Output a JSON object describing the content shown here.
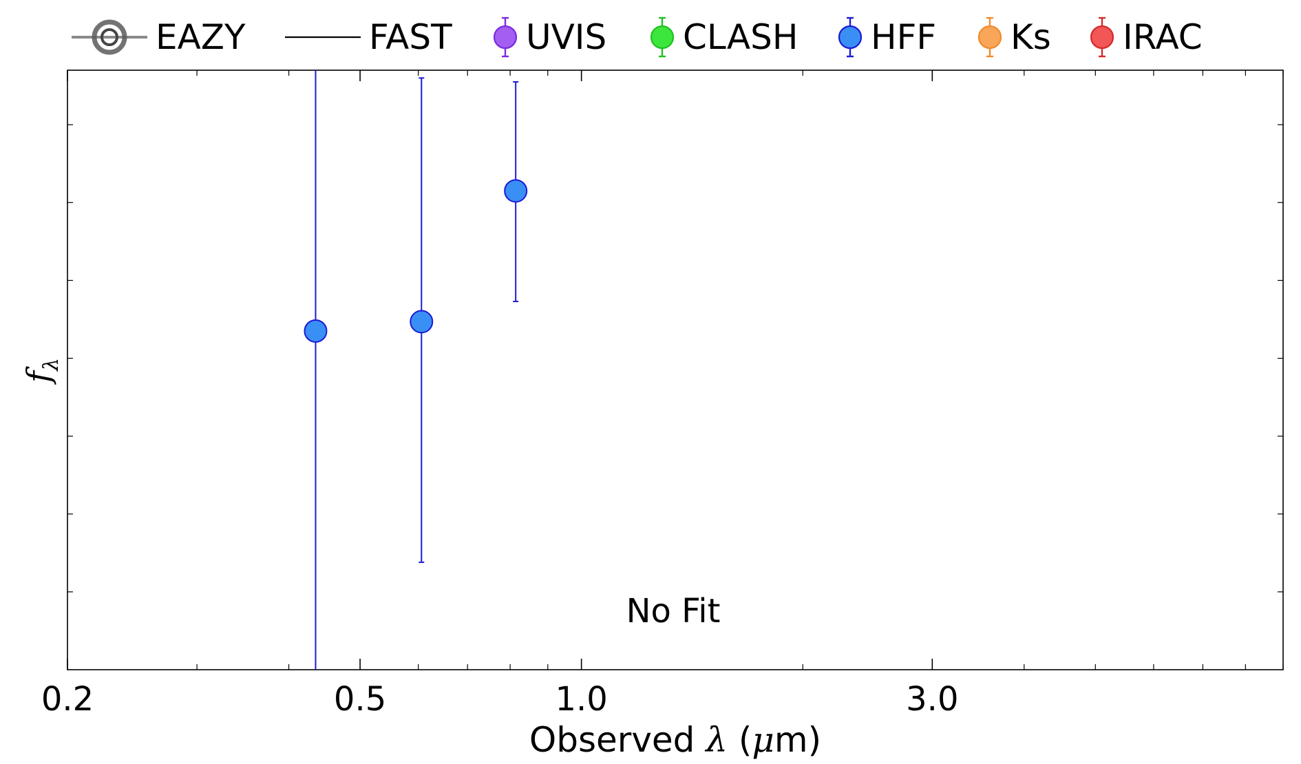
{
  "chart_data": {
    "type": "scatter",
    "x_scale": "log",
    "xlim": [
      0.2,
      9.0
    ],
    "ylim": [
      0,
      7.7
    ],
    "xlabel_main": "Observed ",
    "xlabel_lambda": "λ",
    "xlabel_unit_open": " (",
    "xlabel_mu": "μ",
    "xlabel_unit_close": "m)",
    "ylabel_f": "f",
    "ylabel_sub": "λ",
    "x_ticks": [
      {
        "value": 0.2,
        "label": "0.2"
      },
      {
        "value": 0.5,
        "label": "0.5"
      },
      {
        "value": 1.0,
        "label": "1.0"
      },
      {
        "value": 3.0,
        "label": "3.0"
      }
    ],
    "annotation": "No Fit",
    "legend": [
      {
        "label": "EAZY",
        "marker": "eazy",
        "color": "#777777"
      },
      {
        "label": "FAST",
        "marker": "line",
        "color": "#000000"
      },
      {
        "label": "UVIS",
        "marker": "errpoint",
        "color": "#a35ef2",
        "edge": "#7b2be0"
      },
      {
        "label": "CLASH",
        "marker": "errpoint",
        "color": "#3de63d",
        "edge": "#20c020"
      },
      {
        "label": "HFF",
        "marker": "errpoint",
        "color": "#3a8ff5",
        "edge": "#1a1ad6"
      },
      {
        "label": "Ks",
        "marker": "errpoint",
        "color": "#f9a65a",
        "edge": "#f08a2a"
      },
      {
        "label": "IRAC",
        "marker": "errpoint",
        "color": "#f25656",
        "edge": "#d42a2a"
      }
    ],
    "series": [
      {
        "name": "HFF",
        "color": "#3a8ff5",
        "edge": "#1a1ad6",
        "points": [
          {
            "x": 0.435,
            "y": 4.35,
            "ylow": -1.0,
            "yhigh": 8.5
          },
          {
            "x": 0.606,
            "y": 4.47,
            "ylow": 1.38,
            "yhigh": 7.6
          },
          {
            "x": 0.814,
            "y": 6.15,
            "ylow": 4.73,
            "yhigh": 7.55
          }
        ]
      }
    ]
  }
}
